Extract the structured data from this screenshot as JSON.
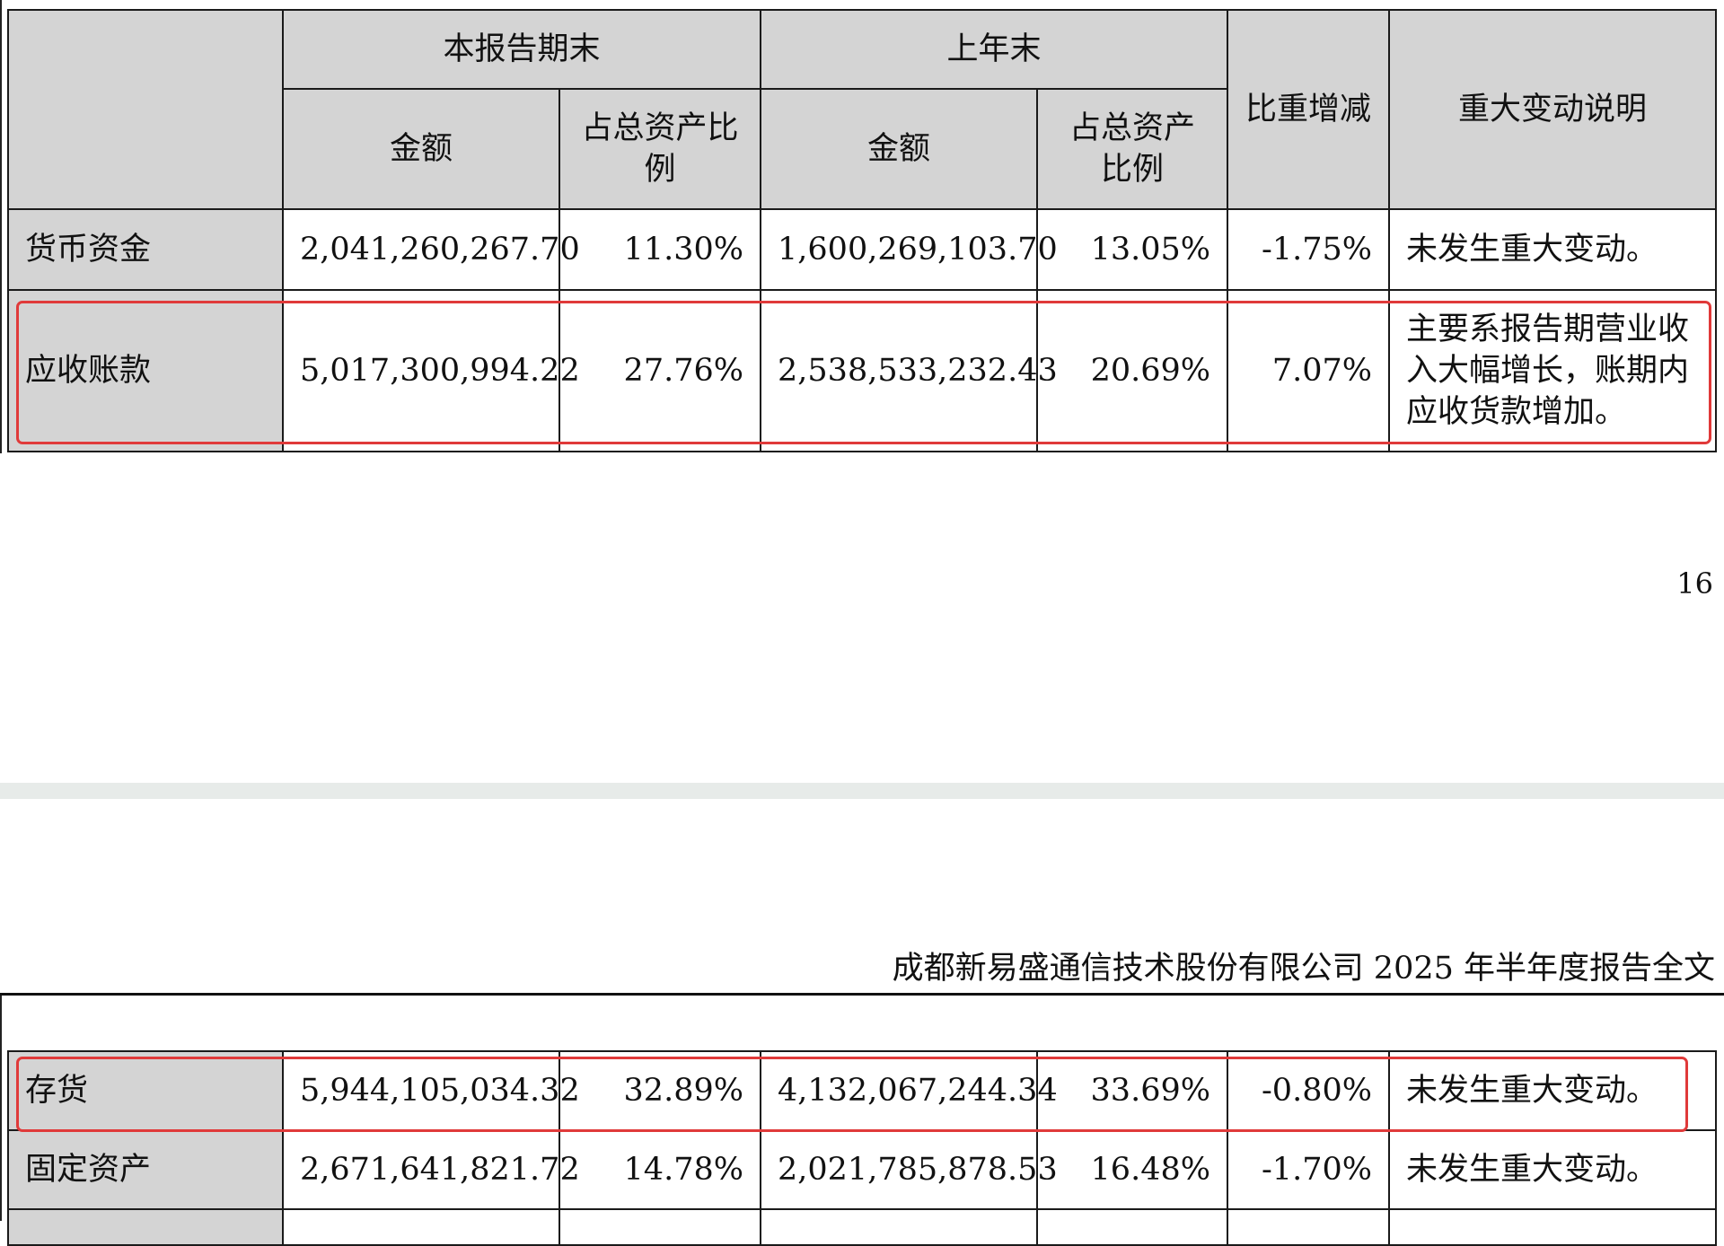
{
  "header": {
    "group_current": "本报告期末",
    "group_prior": "上年末",
    "col_amount": "金额",
    "col_ratio_current": "占总资产比例",
    "col_ratio_prior": "占总资产比例",
    "col_change": "比重增减",
    "col_note": "重大变动说明"
  },
  "rows_page1": [
    {
      "item": "货币资金",
      "amount_current": "2,041,260,267.70",
      "ratio_current": "11.30%",
      "amount_prior": "1,600,269,103.70",
      "ratio_prior": "13.05%",
      "change": "-1.75%",
      "note": "未发生重大变动。"
    },
    {
      "item": "应收账款",
      "amount_current": "5,017,300,994.22",
      "ratio_current": "27.76%",
      "amount_prior": "2,538,533,232.43",
      "ratio_prior": "20.69%",
      "change": "7.07%",
      "note": "主要系报告期营业收入大幅增长，账期内应收货款增加。"
    }
  ],
  "page_number": "16",
  "report_title": "成都新易盛通信技术股份有限公司 2025 年半年度报告全文",
  "rows_page2": [
    {
      "item": "存货",
      "amount_current": "5,944,105,034.32",
      "ratio_current": "32.89%",
      "amount_prior": "4,132,067,244.34",
      "ratio_prior": "33.69%",
      "change": "-0.80%",
      "note": "未发生重大变动。"
    },
    {
      "item": "固定资产",
      "amount_current": "2,671,641,821.72",
      "ratio_current": "14.78%",
      "amount_prior": "2,021,785,878.53",
      "ratio_prior": "16.48%",
      "change": "-1.70%",
      "note": "未发生重大变动。"
    }
  ],
  "highlight_color": "#e03a3a",
  "header_bg": "#d4d4d4"
}
